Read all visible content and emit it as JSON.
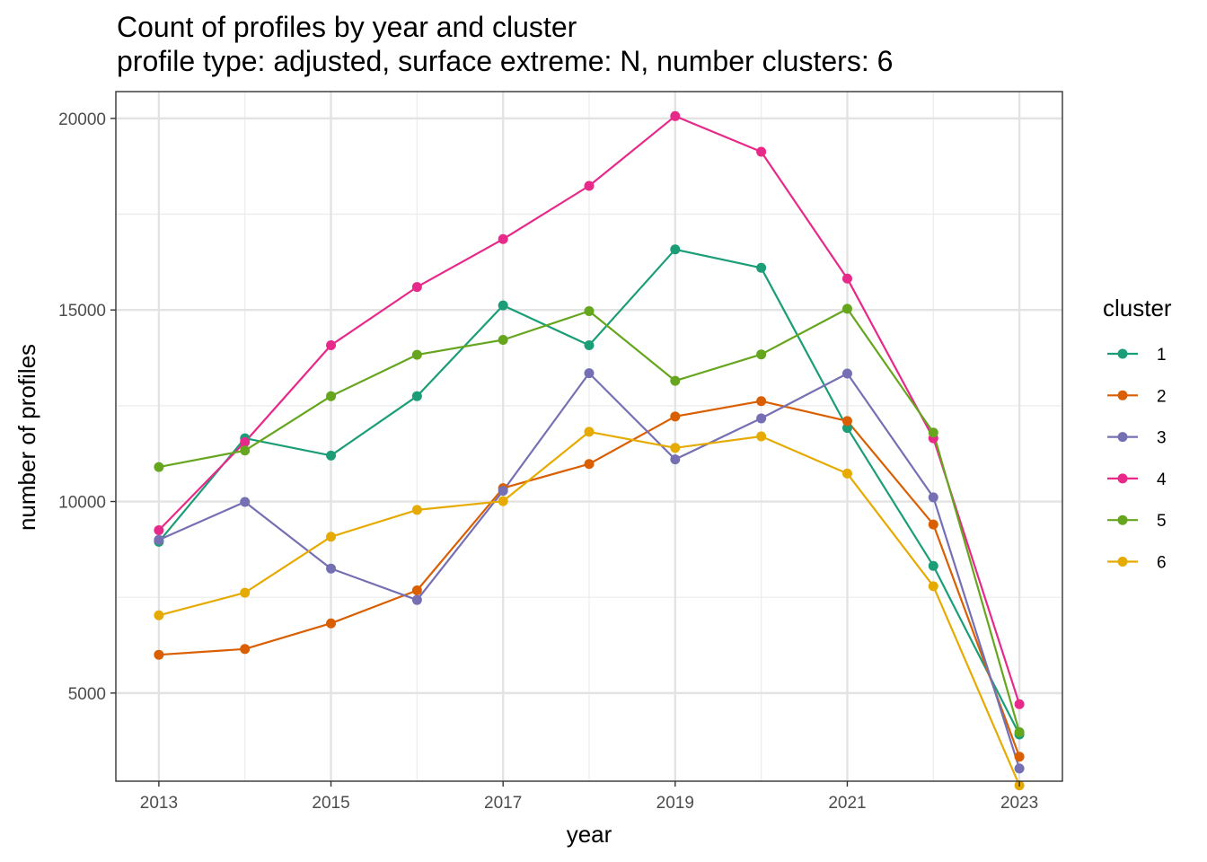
{
  "chart_data": {
    "type": "line",
    "title": "Count of profiles by year and cluster",
    "subtitle": "profile type: adjusted, surface extreme: N, number clusters: 6",
    "xlabel": "year",
    "ylabel": "number of profiles",
    "x": [
      2013,
      2014,
      2015,
      2016,
      2017,
      2018,
      2019,
      2020,
      2021,
      2022,
      2023
    ],
    "xticks": [
      2013,
      2015,
      2017,
      2019,
      2021,
      2023
    ],
    "yticks": [
      5000,
      10000,
      15000,
      20000
    ],
    "xlim": [
      2012.5,
      2023.5
    ],
    "ylim": [
      2700,
      20700
    ],
    "grid": true,
    "legend_title": "cluster",
    "legend_position": "right",
    "series": [
      {
        "name": "1",
        "color": "#1b9e77",
        "values": [
          8950,
          11650,
          11200,
          12750,
          15120,
          14080,
          16580,
          16100,
          11920,
          8320,
          3920
        ]
      },
      {
        "name": "2",
        "color": "#d95f02",
        "values": [
          6000,
          6150,
          6820,
          7680,
          10350,
          10980,
          12220,
          12620,
          12100,
          9400,
          3340
        ]
      },
      {
        "name": "3",
        "color": "#7570b3",
        "values": [
          9000,
          9990,
          8250,
          7430,
          10280,
          13350,
          11100,
          12170,
          13340,
          10110,
          3030
        ]
      },
      {
        "name": "4",
        "color": "#e7298a",
        "values": [
          9250,
          11550,
          14080,
          15600,
          16850,
          18240,
          20060,
          19130,
          15820,
          11650,
          4710
        ]
      },
      {
        "name": "5",
        "color": "#66a61e",
        "values": [
          10900,
          11330,
          12750,
          13830,
          14220,
          14970,
          13150,
          13840,
          15030,
          11800,
          3980
        ]
      },
      {
        "name": "6",
        "color": "#e6ab02",
        "values": [
          7030,
          7620,
          9080,
          9780,
          10010,
          11820,
          11400,
          11700,
          10730,
          7790,
          2590
        ]
      }
    ]
  }
}
